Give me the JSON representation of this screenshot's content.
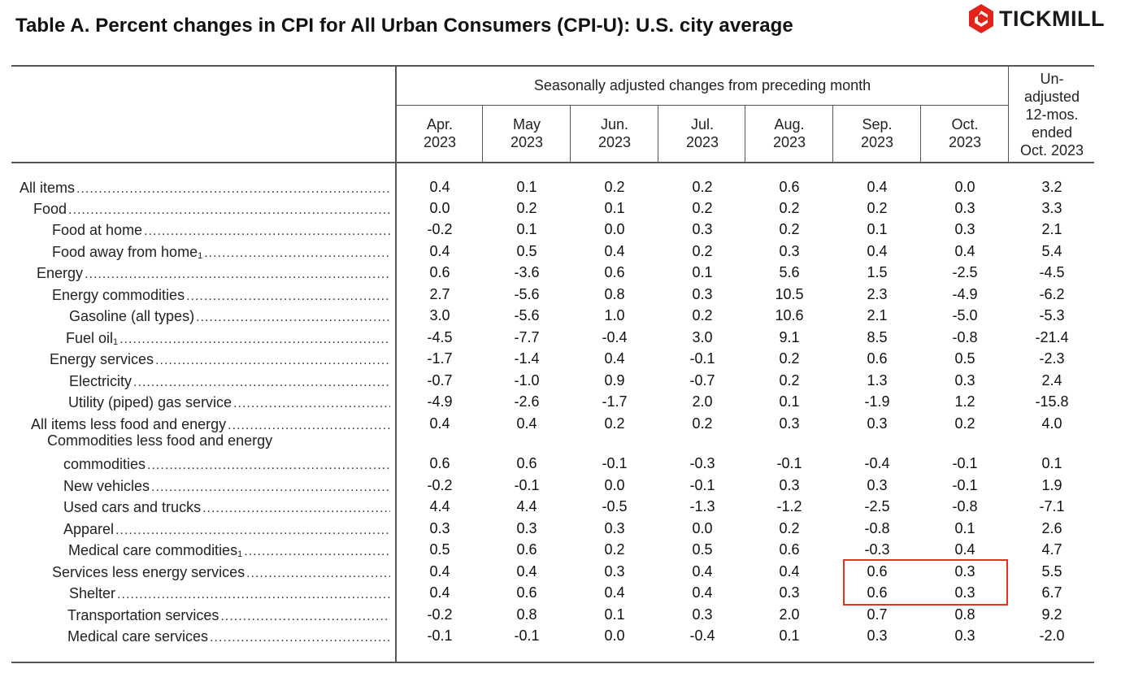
{
  "title": "Table A. Percent changes in CPI for All Urban Consumers (CPI-U): U.S. city average",
  "brand": {
    "name": "TICKMILL",
    "color": "#e2231a"
  },
  "header": {
    "seasonal_group": "Seasonally adjusted changes from preceding month",
    "months": [
      [
        "Apr.",
        "2023"
      ],
      [
        "May",
        "2023"
      ],
      [
        "Jun.",
        "2023"
      ],
      [
        "Jul.",
        "2023"
      ],
      [
        "Aug.",
        "2023"
      ],
      [
        "Sep.",
        "2023"
      ],
      [
        "Oct.",
        "2023"
      ]
    ],
    "unadjusted": [
      "Un-",
      "adjusted",
      "12-mos.",
      "ended",
      "Oct. 2023"
    ]
  },
  "rows": [
    {
      "label": "All items",
      "sup": "",
      "values": [
        "0.4",
        "0.1",
        "0.2",
        "0.2",
        "0.6",
        "0.4",
        "0.0",
        "3.2"
      ]
    },
    {
      "label": "Food",
      "sup": "",
      "values": [
        "0.0",
        "0.2",
        "0.1",
        "0.2",
        "0.2",
        "0.2",
        "0.3",
        "3.3"
      ]
    },
    {
      "label": "Food at home",
      "sup": "",
      "values": [
        "-0.2",
        "0.1",
        "0.0",
        "0.3",
        "0.2",
        "0.1",
        "0.3",
        "2.1"
      ]
    },
    {
      "label": "Food away from home",
      "sup": "1",
      "values": [
        "0.4",
        "0.5",
        "0.4",
        "0.2",
        "0.3",
        "0.4",
        "0.4",
        "5.4"
      ]
    },
    {
      "label": "Energy",
      "sup": "",
      "values": [
        "0.6",
        "-3.6",
        "0.6",
        "0.1",
        "5.6",
        "1.5",
        "-2.5",
        "-4.5"
      ]
    },
    {
      "label": "Energy commodities",
      "sup": "",
      "values": [
        "2.7",
        "-5.6",
        "0.8",
        "0.3",
        "10.5",
        "2.3",
        "-4.9",
        "-6.2"
      ]
    },
    {
      "label": "Gasoline (all types)",
      "sup": "",
      "values": [
        "3.0",
        "-5.6",
        "1.0",
        "0.2",
        "10.6",
        "2.1",
        "-5.0",
        "-5.3"
      ]
    },
    {
      "label": "Fuel oil",
      "sup": "1",
      "values": [
        "-4.5",
        "-7.7",
        "-0.4",
        "3.0",
        "9.1",
        "8.5",
        "-0.8",
        "-21.4"
      ]
    },
    {
      "label": "Energy services",
      "sup": "",
      "values": [
        "-1.7",
        "-1.4",
        "0.4",
        "-0.1",
        "0.2",
        "0.6",
        "0.5",
        "-2.3"
      ]
    },
    {
      "label": "Electricity",
      "sup": "",
      "values": [
        "-0.7",
        "-1.0",
        "0.9",
        "-0.7",
        "0.2",
        "1.3",
        "0.3",
        "2.4"
      ]
    },
    {
      "label": "Utility (piped) gas service",
      "sup": "",
      "values": [
        "-4.9",
        "-2.6",
        "-1.7",
        "2.0",
        "0.1",
        "-1.9",
        "1.2",
        "-15.8"
      ]
    },
    {
      "label": "All items less food and energy",
      "sup": "",
      "values": [
        "0.4",
        "0.4",
        "0.2",
        "0.2",
        "0.3",
        "0.3",
        "0.2",
        "4.0"
      ]
    },
    {
      "label": "commodities",
      "pre": "Commodities less food and energy",
      "sup": "",
      "values": [
        "0.6",
        "0.6",
        "-0.1",
        "-0.3",
        "-0.1",
        "-0.4",
        "-0.1",
        "0.1"
      ]
    },
    {
      "label": "New vehicles",
      "sup": "",
      "values": [
        "-0.2",
        "-0.1",
        "0.0",
        "-0.1",
        "0.3",
        "0.3",
        "-0.1",
        "1.9"
      ]
    },
    {
      "label": "Used cars and trucks",
      "sup": "",
      "values": [
        "4.4",
        "4.4",
        "-0.5",
        "-1.3",
        "-1.2",
        "-2.5",
        "-0.8",
        "-7.1"
      ]
    },
    {
      "label": "Apparel",
      "sup": "",
      "values": [
        "0.3",
        "0.3",
        "0.3",
        "0.0",
        "0.2",
        "-0.8",
        "0.1",
        "2.6"
      ]
    },
    {
      "label": "Medical care commodities",
      "sup": "1",
      "values": [
        "0.5",
        "0.6",
        "0.2",
        "0.5",
        "0.6",
        "-0.3",
        "0.4",
        "4.7"
      ]
    },
    {
      "label": "Services less energy services",
      "sup": "",
      "values": [
        "0.4",
        "0.4",
        "0.3",
        "0.4",
        "0.4",
        "0.6",
        "0.3",
        "5.5"
      ]
    },
    {
      "label": "Shelter",
      "sup": "",
      "values": [
        "0.4",
        "0.6",
        "0.4",
        "0.4",
        "0.3",
        "0.6",
        "0.3",
        "6.7"
      ]
    },
    {
      "label": "Transportation services",
      "sup": "",
      "values": [
        "-0.2",
        "0.8",
        "0.1",
        "0.3",
        "2.0",
        "0.7",
        "0.8",
        "9.2"
      ]
    },
    {
      "label": "Medical care services",
      "sup": "",
      "values": [
        "-0.1",
        "-0.1",
        "0.0",
        "-0.4",
        "0.1",
        "0.3",
        "0.3",
        "-2.0"
      ]
    }
  ],
  "highlight_color": "#e8321d"
}
